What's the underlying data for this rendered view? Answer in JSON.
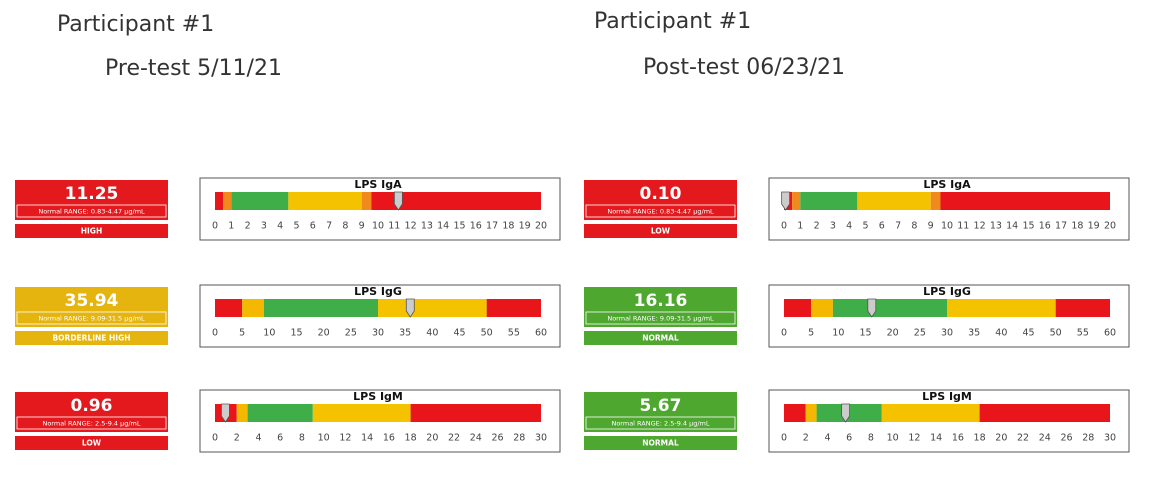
{
  "gauges": [
    {
      "title": "LPS IgA",
      "lim": [
        0,
        20
      ],
      "ticks": [
        0,
        1,
        2,
        3,
        4,
        5,
        6,
        7,
        8,
        9,
        10,
        11,
        12,
        13,
        14,
        15,
        16,
        17,
        18,
        19,
        20
      ],
      "bands": [
        {
          "from": 0,
          "to": 0.5,
          "color": "#e8161b"
        },
        {
          "from": 0.5,
          "to": 1,
          "color": "#f08a1c"
        },
        {
          "from": 1,
          "to": 4.5,
          "color": "#3fae49"
        },
        {
          "from": 4.5,
          "to": 9,
          "color": "#f5c200"
        },
        {
          "from": 9,
          "to": 9.6,
          "color": "#f08a1c"
        },
        {
          "from": 9.6,
          "to": 20,
          "color": "#e8161b"
        }
      ]
    },
    {
      "title": "LPS IgG",
      "lim": [
        0,
        60
      ],
      "ticks": [
        0,
        5,
        10,
        15,
        20,
        25,
        30,
        35,
        40,
        45,
        50,
        55,
        60
      ],
      "bands": [
        {
          "from": 0,
          "to": 5,
          "color": "#e8161b"
        },
        {
          "from": 5,
          "to": 9,
          "color": "#f5b800"
        },
        {
          "from": 9,
          "to": 30,
          "color": "#3fae49"
        },
        {
          "from": 30,
          "to": 50,
          "color": "#f5c200"
        },
        {
          "from": 50,
          "to": 60,
          "color": "#e8161b"
        }
      ]
    },
    {
      "title": "LPS IgM",
      "lim": [
        0,
        30
      ],
      "ticks": [
        0,
        2,
        4,
        6,
        8,
        10,
        12,
        14,
        16,
        18,
        20,
        22,
        24,
        26,
        28,
        30
      ],
      "bands": [
        {
          "from": 0,
          "to": 2,
          "color": "#e8161b"
        },
        {
          "from": 2,
          "to": 3,
          "color": "#f5b800"
        },
        {
          "from": 3,
          "to": 9,
          "color": "#3fae49"
        },
        {
          "from": 9,
          "to": 18,
          "color": "#f5c200"
        },
        {
          "from": 18,
          "to": 30,
          "color": "#e8161b"
        }
      ]
    }
  ],
  "panels": [
    {
      "participant": "Participant #1",
      "test": "Pre-test 5/11/21",
      "results": [
        {
          "value": 11.25,
          "range": "Normal RANGE: 0.83-4.47 µg/mL",
          "status": "HIGH",
          "color": "#e3191d"
        },
        {
          "value": 35.94,
          "range": "Normal RANGE: 9.09-31.5 µg/mL",
          "status": "BORDERLINE HIGH",
          "color": "#e6b40f"
        },
        {
          "value": 0.96,
          "range": "Normal RANGE: 2.5-9.4 µg/mL",
          "status": "LOW",
          "color": "#e3191d"
        }
      ]
    },
    {
      "participant": "Participant #1",
      "test": "Post-test 06/23/21",
      "results": [
        {
          "value": 0.1,
          "value_label": "0.10",
          "range": "Normal RANGE: 0.83-4.47 µg/mL",
          "status": "LOW",
          "color": "#e3191d"
        },
        {
          "value": 16.16,
          "range": "Normal RANGE: 9.09-31.5 µg/mL",
          "status": "NORMAL",
          "color": "#4ea72e"
        },
        {
          "value": 5.67,
          "range": "Normal RANGE: 2.5-9.4 µg/mL",
          "status": "NORMAL",
          "color": "#4ea72e"
        }
      ]
    }
  ]
}
